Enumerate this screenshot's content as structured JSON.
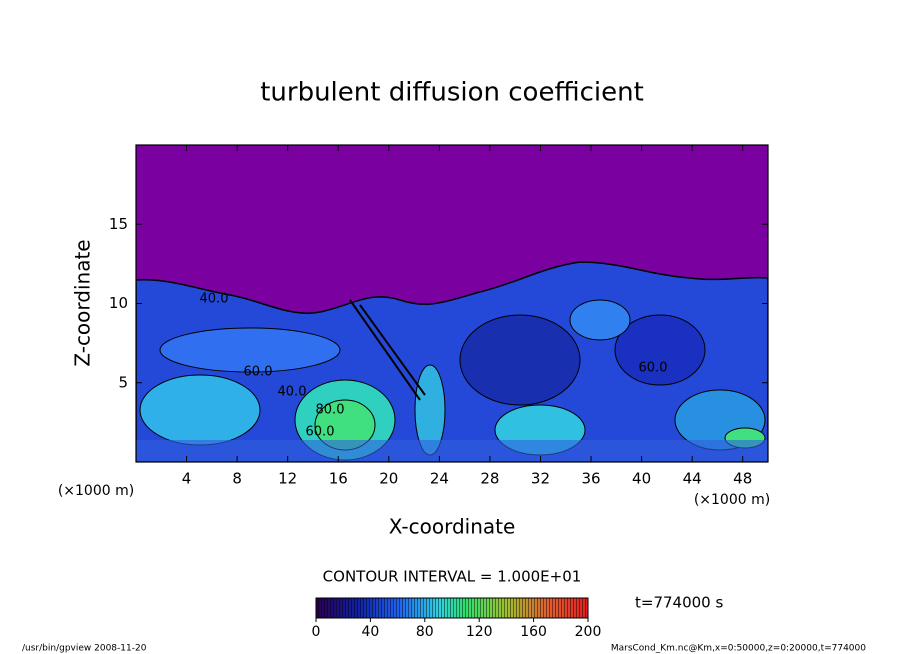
{
  "chart_data": {
    "type": "contour",
    "title": "turbulent diffusion coefficient",
    "x_label": "X-coordinate",
    "y_label": "Z-coordinate",
    "x_unit": "(×1000 m)",
    "y_unit": "(×1000 m)",
    "xlim": [
      0,
      50
    ],
    "xticks": [
      4,
      8,
      12,
      16,
      20,
      24,
      28,
      32,
      36,
      40,
      44,
      48
    ],
    "ylim": [
      0,
      20
    ],
    "yticks": [
      5,
      10,
      15
    ],
    "contour_labels": [
      "40.0",
      "60.0",
      "40.0",
      "80.0",
      "60.0",
      "60.0"
    ],
    "contour_interval": "CONTOUR INTERVAL = 1.000E+01",
    "colorbar": {
      "lim": [
        0,
        200
      ],
      "ticks": [
        0,
        40,
        80,
        120,
        160,
        200
      ]
    },
    "time_label": "t=774000 s",
    "footer_left": "/usr/bin/gpview  2008-11-20",
    "footer_right": "MarsCond_Km.nc@Km,x=0:50000,z=0:20000,t=774000"
  }
}
